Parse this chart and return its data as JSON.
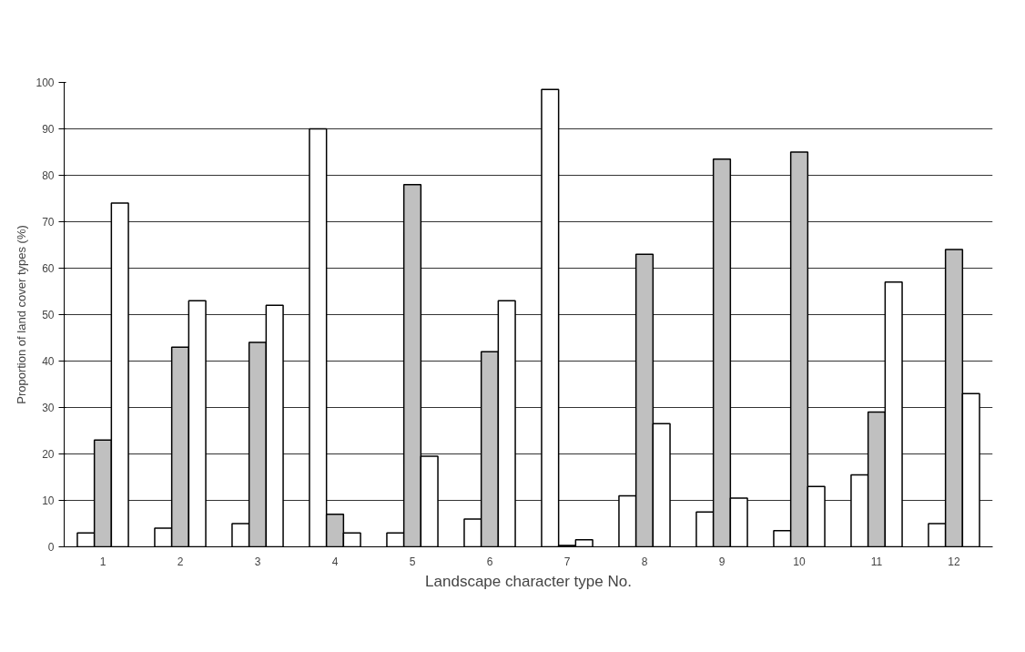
{
  "chart_data": {
    "type": "bar",
    "xlabel": "Landscape character type No.",
    "ylabel": "Proportion of land cover types (%)",
    "categories": [
      "1",
      "2",
      "3",
      "4",
      "5",
      "6",
      "7",
      "8",
      "9",
      "10",
      "11",
      "12"
    ],
    "series": [
      {
        "color": "#ffffff",
        "values": [
          3,
          4,
          5,
          90,
          3,
          6,
          98.5,
          11,
          7.5,
          3.5,
          15.5,
          5
        ]
      },
      {
        "color": "#c0c0c0",
        "values": [
          23,
          43,
          44,
          7,
          78,
          42,
          0.3,
          63,
          83.5,
          85,
          29,
          64
        ]
      },
      {
        "color": "#ffffff",
        "values": [
          74,
          53,
          52,
          3,
          19.5,
          53,
          1.5,
          26.5,
          10.5,
          13,
          57,
          33
        ]
      }
    ],
    "ylim": [
      0,
      100
    ],
    "yticks": [
      0,
      10,
      20,
      30,
      40,
      50,
      60,
      70,
      80,
      90,
      100
    ],
    "grid": "y"
  }
}
